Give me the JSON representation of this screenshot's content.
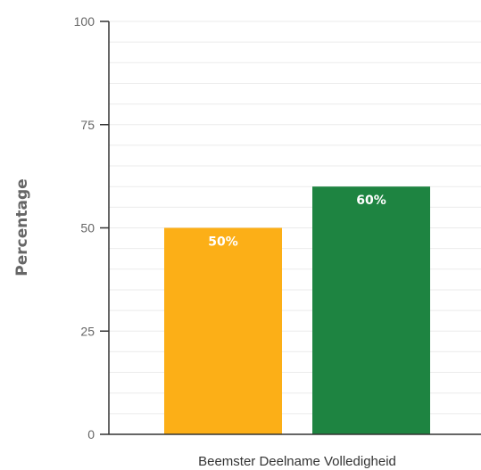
{
  "chart_data": {
    "type": "bar",
    "categories": [
      "Beemster Deelname Volledigheid"
    ],
    "series": [
      {
        "values": [
          50
        ],
        "color": "#FCAF17",
        "data_label": "50%"
      },
      {
        "values": [
          60
        ],
        "color": "#1E8441",
        "data_label": "60%"
      }
    ],
    "title": "",
    "xlabel": "",
    "ylabel": "Percentage",
    "ylim": [
      0,
      100
    ],
    "yticks": [
      "0",
      "25",
      "50",
      "75",
      "100"
    ],
    "grid": true,
    "legend": "none"
  }
}
